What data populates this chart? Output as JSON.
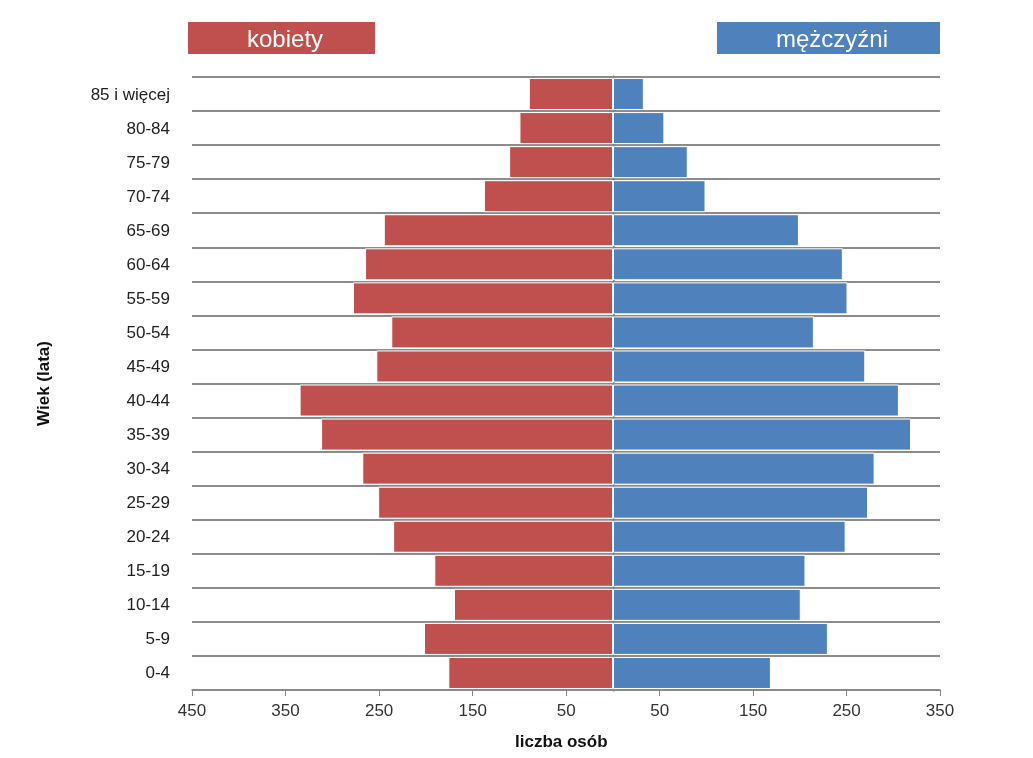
{
  "chart_data": [
    {
      "type": "bar",
      "orientation": "horizontal",
      "ylabel": "Wiek (lata)",
      "xlabel": "liczba osób",
      "categories": [
        "85 i więcej",
        "80-84",
        "75-79",
        "70-74",
        "65-69",
        "60-64",
        "55-59",
        "50-54",
        "45-49",
        "40-44",
        "35-39",
        "30-34",
        "25-29",
        "20-24",
        "15-19",
        "10-14",
        "5-9",
        "0-4"
      ],
      "series": [
        {
          "name": "kobiety",
          "color": "#c0504d",
          "values": [
            90,
            100,
            111,
            138,
            245,
            265,
            278,
            237,
            253,
            335,
            312,
            268,
            251,
            235,
            191,
            170,
            202,
            176
          ]
        }
      ],
      "xlim": [
        450,
        0
      ],
      "xticks": [
        450,
        350,
        250,
        150,
        50
      ],
      "grid": "y",
      "legend": "top left"
    },
    {
      "type": "bar",
      "orientation": "horizontal",
      "categories": [
        null,
        null,
        null,
        null,
        null,
        null,
        null,
        null,
        null,
        null,
        null,
        null,
        null,
        null,
        null,
        null,
        null,
        null
      ],
      "series": [
        {
          "name": "mężczyźni",
          "color": "#4f81bd",
          "values": [
            33,
            55,
            80,
            99,
            199,
            246,
            251,
            215,
            270,
            306,
            319,
            280,
            273,
            249,
            206,
            201,
            230,
            169
          ]
        }
      ],
      "xlim": [
        0,
        350
      ],
      "xticks": [
        50,
        150,
        250,
        350
      ],
      "grid": "y",
      "legend": "top right",
      "tick_labels": "x"
    }
  ]
}
